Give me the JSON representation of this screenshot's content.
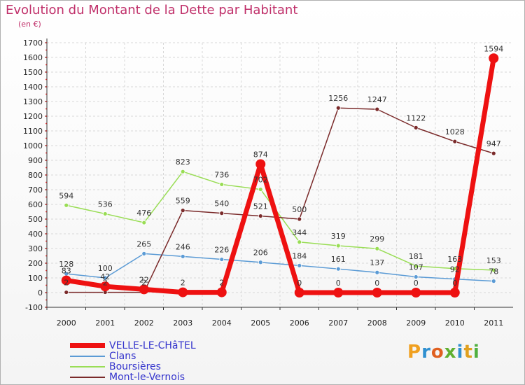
{
  "title": "Evolution du Montant de la Dette par Habitant",
  "unit": "(en €)",
  "logo": {
    "text": "Proxiti",
    "colors": [
      "#f0a020",
      "#3090d0",
      "#e06020",
      "#60b030",
      "#3090d0",
      "#e0a020",
      "#50b040"
    ]
  },
  "chart_data": {
    "type": "line",
    "x": [
      "2000",
      "2001",
      "2002",
      "2003",
      "2004",
      "2005",
      "2006",
      "2007",
      "2008",
      "2009",
      "2010",
      "2011"
    ],
    "ylim": [
      -100,
      1700
    ],
    "yticks": [
      -100,
      0,
      100,
      200,
      300,
      400,
      500,
      600,
      700,
      800,
      900,
      1000,
      1100,
      1200,
      1300,
      1400,
      1500,
      1600,
      1700
    ],
    "grid": true,
    "legend": "bottom-left",
    "series": [
      {
        "name": "VELLE-LE-CHâTEL",
        "color": "#ee1111",
        "width": 7,
        "marker": 7,
        "values": [
          83,
          42,
          22,
          2,
          2,
          874,
          0,
          0,
          0,
          0,
          0,
          1594
        ],
        "labels": [
          "83",
          "42",
          "22",
          "2",
          "2",
          "874",
          "0",
          "0",
          "0",
          "0",
          "0",
          "1594"
        ]
      },
      {
        "name": "Clans",
        "color": "#5b9bd5",
        "width": 1.5,
        "marker": 3,
        "values": [
          128,
          100,
          265,
          246,
          226,
          206,
          184,
          161,
          137,
          107,
          92,
          78
        ],
        "labels": [
          "128",
          "100",
          "265",
          "246",
          "226",
          "206",
          "184",
          "161",
          "137",
          "107",
          "92",
          "78"
        ]
      },
      {
        "name": "Boursières",
        "color": "#99dd55",
        "width": 1.5,
        "marker": 3,
        "values": [
          594,
          536,
          476,
          823,
          736,
          702,
          344,
          319,
          299,
          181,
          163,
          153
        ],
        "labels": [
          "594",
          "536",
          "476",
          "823",
          "736",
          "702",
          "344",
          "319",
          "299",
          "181",
          "163",
          "153"
        ]
      },
      {
        "name": "Mont-le-Vernois",
        "color": "#7a2a2a",
        "width": 1.5,
        "marker": 3,
        "values": [
          2,
          2,
          2,
          559,
          540,
          521,
          500,
          1256,
          1247,
          1122,
          1028,
          947
        ],
        "labels": [
          "2",
          "2",
          "2",
          "559",
          "540",
          "521",
          "500",
          "1256",
          "1247",
          "1122",
          "1028",
          "947"
        ]
      }
    ]
  }
}
